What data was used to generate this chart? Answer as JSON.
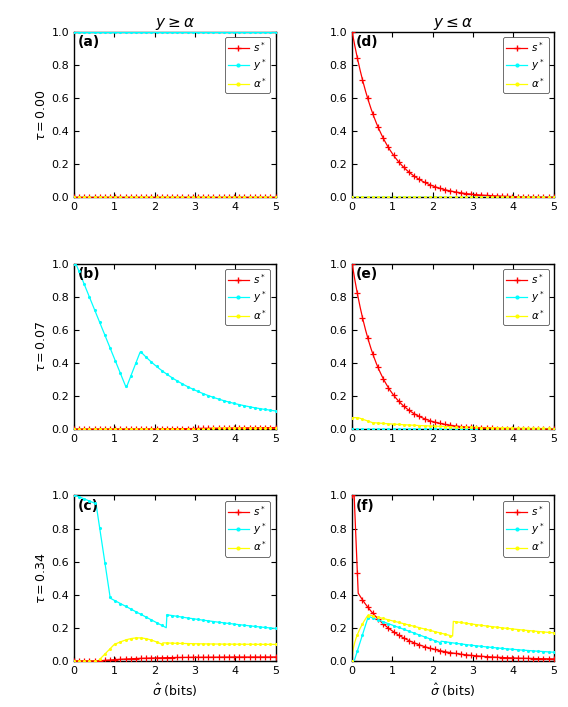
{
  "title_left": "$y \\geq \\alpha$",
  "title_right": "$y \\leq \\alpha$",
  "panel_labels": [
    "(a)",
    "(b)",
    "(c)",
    "(d)",
    "(e)",
    "(f)"
  ],
  "ylabels": [
    "$\\tau = 0.00$",
    "$\\tau = 0.07$",
    "$\\tau = 0.34$"
  ],
  "xlabel": "$\\hat{\\sigma}$ (bits)",
  "legend_labels": [
    "$s^*$",
    "$y^*$",
    "$\\alpha^*$"
  ],
  "colors_s": "red",
  "colors_y": "cyan",
  "colors_a": "yellow",
  "xlim": [
    0,
    5
  ],
  "ylim": [
    0,
    1
  ],
  "yticks": [
    0.0,
    0.2,
    0.4,
    0.6,
    0.8,
    1.0
  ],
  "xticks": [
    0,
    1,
    2,
    3,
    4,
    5
  ]
}
